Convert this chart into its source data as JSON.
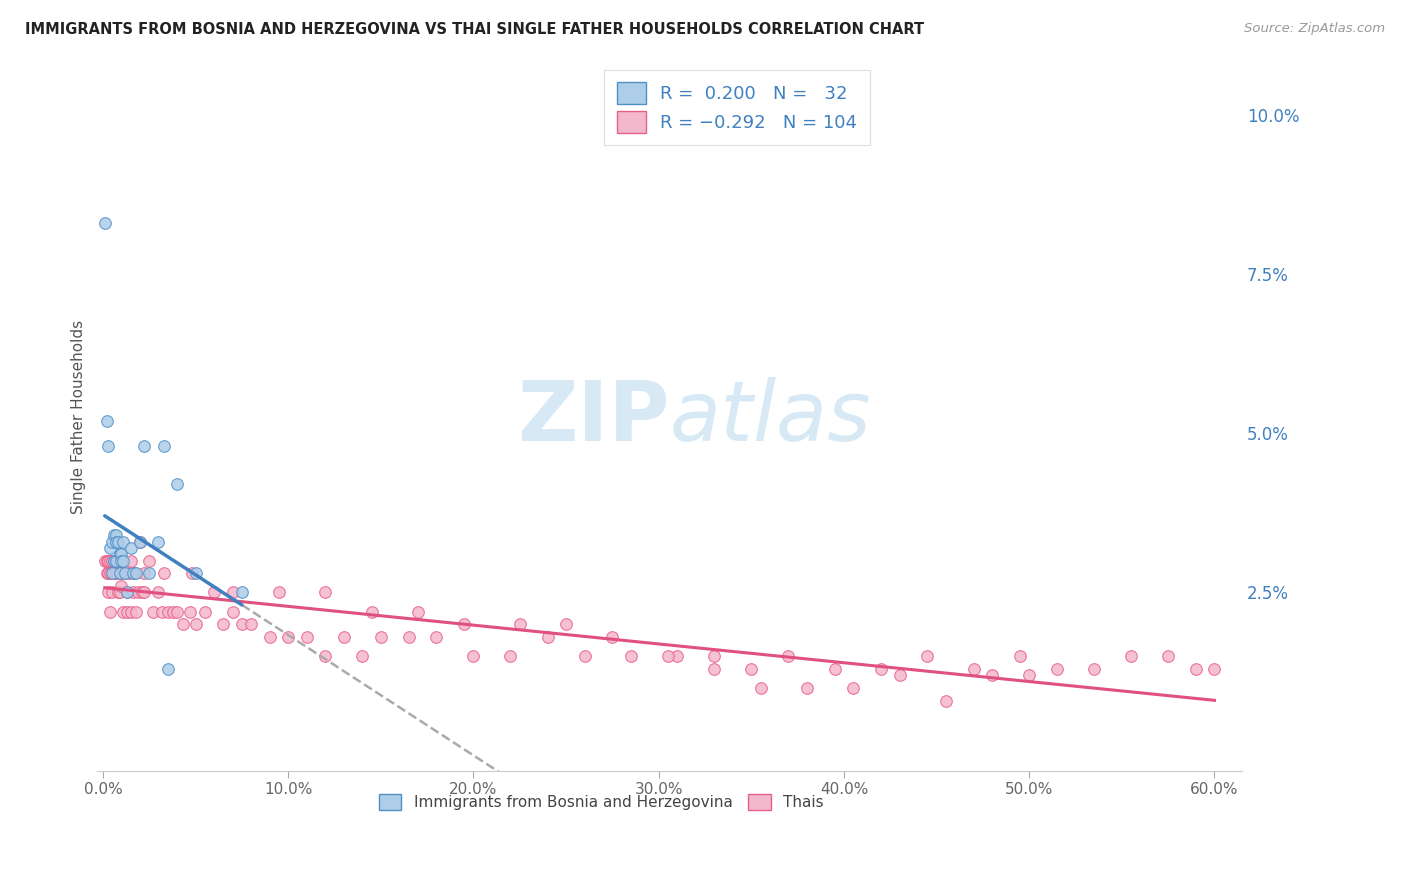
{
  "title": "IMMIGRANTS FROM BOSNIA AND HERZEGOVINA VS THAI SINGLE FATHER HOUSEHOLDS CORRELATION CHART",
  "source": "Source: ZipAtlas.com",
  "ylabel": "Single Father Households",
  "r_bosnia": 0.2,
  "n_bosnia": 32,
  "r_thai": -0.292,
  "n_thai": 104,
  "xlim": [
    -0.003,
    0.615
  ],
  "ylim": [
    -0.003,
    0.108
  ],
  "right_yticks": [
    0.025,
    0.05,
    0.075,
    0.1
  ],
  "right_yticklabels": [
    "2.5%",
    "5.0%",
    "7.5%",
    "10.0%"
  ],
  "bottom_xticks": [
    0.0,
    0.1,
    0.2,
    0.3,
    0.4,
    0.5,
    0.6
  ],
  "bottom_xticklabels": [
    "0.0%",
    "10.0%",
    "20.0%",
    "30.0%",
    "40.0%",
    "50.0%",
    "60.0%"
  ],
  "color_bosnia_fill": "#aecde8",
  "color_thai_fill": "#f4b8cc",
  "color_bosnia_edge": "#5090c8",
  "color_thai_edge": "#e8608a",
  "color_bosnia_line": "#4080c0",
  "color_thai_line": "#e05080",
  "color_dashed": "#aaaaaa",
  "color_legend_text": "#4080c0",
  "bosnia_x": [
    0.001,
    0.002,
    0.003,
    0.004,
    0.005,
    0.005,
    0.006,
    0.006,
    0.007,
    0.007,
    0.007,
    0.008,
    0.009,
    0.009,
    0.01,
    0.01,
    0.011,
    0.011,
    0.012,
    0.013,
    0.015,
    0.016,
    0.018,
    0.02,
    0.022,
    0.025,
    0.03,
    0.033,
    0.035,
    0.04,
    0.05,
    0.075
  ],
  "bosnia_y": [
    0.083,
    0.052,
    0.048,
    0.032,
    0.033,
    0.028,
    0.034,
    0.03,
    0.034,
    0.033,
    0.03,
    0.033,
    0.031,
    0.028,
    0.031,
    0.03,
    0.033,
    0.03,
    0.028,
    0.025,
    0.032,
    0.028,
    0.028,
    0.033,
    0.048,
    0.028,
    0.033,
    0.048,
    0.013,
    0.042,
    0.028,
    0.025
  ],
  "thai_x": [
    0.001,
    0.002,
    0.002,
    0.003,
    0.003,
    0.003,
    0.004,
    0.004,
    0.004,
    0.005,
    0.005,
    0.005,
    0.006,
    0.006,
    0.007,
    0.007,
    0.008,
    0.008,
    0.009,
    0.009,
    0.01,
    0.01,
    0.011,
    0.011,
    0.012,
    0.013,
    0.013,
    0.014,
    0.015,
    0.016,
    0.017,
    0.018,
    0.019,
    0.02,
    0.021,
    0.022,
    0.025,
    0.027,
    0.03,
    0.032,
    0.035,
    0.038,
    0.04,
    0.043,
    0.047,
    0.05,
    0.055,
    0.06,
    0.065,
    0.07,
    0.075,
    0.08,
    0.09,
    0.1,
    0.11,
    0.12,
    0.13,
    0.14,
    0.15,
    0.165,
    0.18,
    0.2,
    0.22,
    0.24,
    0.26,
    0.285,
    0.31,
    0.33,
    0.35,
    0.37,
    0.395,
    0.42,
    0.445,
    0.47,
    0.495,
    0.515,
    0.535,
    0.555,
    0.575,
    0.59,
    0.6,
    0.5,
    0.48,
    0.455,
    0.43,
    0.405,
    0.38,
    0.355,
    0.33,
    0.305,
    0.275,
    0.25,
    0.225,
    0.195,
    0.17,
    0.145,
    0.12,
    0.095,
    0.07,
    0.048,
    0.033,
    0.022,
    0.015,
    0.01
  ],
  "thai_y": [
    0.03,
    0.03,
    0.028,
    0.03,
    0.028,
    0.025,
    0.03,
    0.028,
    0.022,
    0.03,
    0.028,
    0.025,
    0.03,
    0.028,
    0.03,
    0.028,
    0.03,
    0.025,
    0.028,
    0.025,
    0.03,
    0.026,
    0.028,
    0.022,
    0.028,
    0.025,
    0.022,
    0.028,
    0.022,
    0.025,
    0.028,
    0.022,
    0.025,
    0.033,
    0.025,
    0.025,
    0.03,
    0.022,
    0.025,
    0.022,
    0.022,
    0.022,
    0.022,
    0.02,
    0.022,
    0.02,
    0.022,
    0.025,
    0.02,
    0.022,
    0.02,
    0.02,
    0.018,
    0.018,
    0.018,
    0.015,
    0.018,
    0.015,
    0.018,
    0.018,
    0.018,
    0.015,
    0.015,
    0.018,
    0.015,
    0.015,
    0.015,
    0.013,
    0.013,
    0.015,
    0.013,
    0.013,
    0.015,
    0.013,
    0.015,
    0.013,
    0.013,
    0.015,
    0.015,
    0.013,
    0.013,
    0.012,
    0.012,
    0.008,
    0.012,
    0.01,
    0.01,
    0.01,
    0.015,
    0.015,
    0.018,
    0.02,
    0.02,
    0.02,
    0.022,
    0.022,
    0.025,
    0.025,
    0.025,
    0.028,
    0.028,
    0.028,
    0.03,
    0.03
  ]
}
